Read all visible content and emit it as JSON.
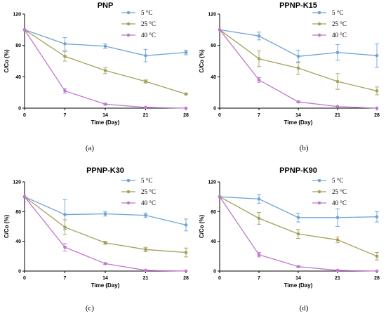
{
  "chart_data": [
    {
      "type": "line",
      "title": "PNP",
      "caption": "(a)",
      "xlabel": "Time (Day)",
      "ylabel": "C/Co (%)",
      "x": [
        0,
        7,
        14,
        21,
        28
      ],
      "xticks": [
        "0",
        "7",
        "14",
        "21",
        "28"
      ],
      "yticks": [
        "0",
        "40",
        "80",
        "120"
      ],
      "xlim": [
        0,
        28
      ],
      "ylim": [
        0,
        120
      ],
      "grid": false,
      "legend_position": "top-right",
      "series": [
        {
          "name": "5 °C",
          "color": "#6fa3d6",
          "values": [
            100,
            82,
            79,
            67,
            71
          ],
          "errors": [
            0,
            8,
            3,
            8,
            3
          ]
        },
        {
          "name": "25 °C",
          "color": "#a5a05a",
          "values": [
            100,
            66,
            48,
            34,
            18
          ],
          "errors": [
            0,
            6,
            4,
            2,
            1
          ]
        },
        {
          "name": "40 °C",
          "color": "#c077cf",
          "values": [
            100,
            22,
            5,
            1,
            0
          ],
          "errors": [
            0,
            3,
            1,
            0,
            0
          ]
        }
      ]
    },
    {
      "type": "line",
      "title": "PPNP-K15",
      "caption": "(b)",
      "xlabel": "Time (Day)",
      "ylabel": "C/Co (%)",
      "x": [
        0,
        7,
        14,
        21,
        28
      ],
      "xticks": [
        "0",
        "7",
        "14",
        "21",
        "28"
      ],
      "yticks": [
        "0",
        "40",
        "80",
        "120"
      ],
      "xlim": [
        0,
        28
      ],
      "ylim": [
        0,
        120
      ],
      "grid": false,
      "legend_position": "top-right",
      "series": [
        {
          "name": "5 °C",
          "color": "#6fa3d6",
          "values": [
            100,
            92,
            66,
            71,
            67
          ],
          "errors": [
            0,
            5,
            8,
            10,
            15
          ]
        },
        {
          "name": "25 °C",
          "color": "#a5a05a",
          "values": [
            100,
            63,
            51,
            34,
            22
          ],
          "errors": [
            0,
            10,
            8,
            10,
            5
          ]
        },
        {
          "name": "40 °C",
          "color": "#c077cf",
          "values": [
            100,
            36,
            8,
            2,
            0
          ],
          "errors": [
            0,
            3,
            1,
            0,
            0
          ]
        }
      ]
    },
    {
      "type": "line",
      "title": "PPNP-K30",
      "caption": "(c)",
      "xlabel": "Time (Day)",
      "ylabel": "C/Co (%)",
      "x": [
        0,
        7,
        14,
        21,
        28
      ],
      "xticks": [
        "0",
        "7",
        "14",
        "21",
        "28"
      ],
      "yticks": [
        "0",
        "40",
        "80",
        "120"
      ],
      "xlim": [
        0,
        28
      ],
      "ylim": [
        0,
        120
      ],
      "grid": false,
      "legend_position": "top-right",
      "series": [
        {
          "name": "5 °C",
          "color": "#6fa3d6",
          "values": [
            100,
            76,
            77,
            75,
            62
          ],
          "errors": [
            0,
            20,
            3,
            3,
            8
          ]
        },
        {
          "name": "25 °C",
          "color": "#a5a05a",
          "values": [
            100,
            59,
            38,
            29,
            25
          ],
          "errors": [
            0,
            10,
            2,
            3,
            6
          ]
        },
        {
          "name": "40 °C",
          "color": "#c077cf",
          "values": [
            100,
            32,
            10,
            1,
            0
          ],
          "errors": [
            0,
            5,
            1,
            0,
            0
          ]
        }
      ]
    },
    {
      "type": "line",
      "title": "PPNP-K90",
      "caption": "(d)",
      "xlabel": "Time (Day)",
      "ylabel": "C/Co (%)",
      "x": [
        0,
        7,
        14,
        21,
        28
      ],
      "xticks": [
        "0",
        "7",
        "14",
        "21",
        "28"
      ],
      "yticks": [
        "0",
        "40",
        "80",
        "120"
      ],
      "xlim": [
        0,
        28
      ],
      "ylim": [
        0,
        120
      ],
      "grid": false,
      "legend_position": "top-right",
      "series": [
        {
          "name": "5 °C",
          "color": "#6fa3d6",
          "values": [
            100,
            97,
            72,
            72,
            73
          ],
          "errors": [
            0,
            6,
            6,
            12,
            7
          ]
        },
        {
          "name": "25 °C",
          "color": "#a5a05a",
          "values": [
            100,
            71,
            50,
            42,
            20
          ],
          "errors": [
            0,
            8,
            6,
            4,
            5
          ]
        },
        {
          "name": "40 °C",
          "color": "#c077cf",
          "values": [
            100,
            22,
            6,
            1,
            0
          ],
          "errors": [
            0,
            3,
            1,
            0,
            0
          ]
        }
      ]
    }
  ]
}
